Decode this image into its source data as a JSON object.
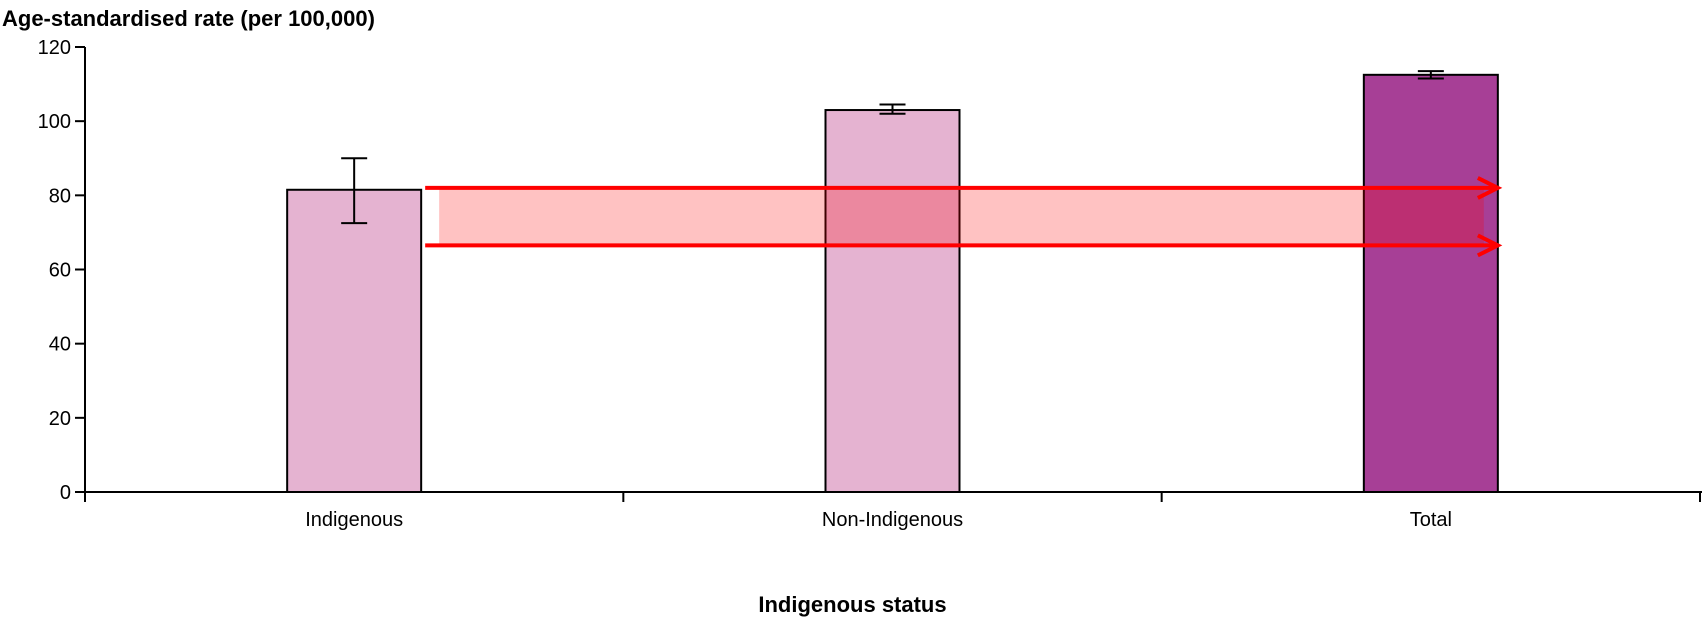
{
  "chart_data": {
    "type": "bar",
    "ylabel": "Age-standardised rate (per 100,000)",
    "xlabel": "Indigenous status",
    "categories": [
      "Indigenous",
      "Non-Indigenous",
      "Total"
    ],
    "values": [
      81.5,
      103,
      112.5
    ],
    "error_low": [
      72.5,
      102,
      111.5
    ],
    "error_high": [
      90,
      104.5,
      113.5
    ],
    "bar_colors": [
      "#e5b3d1",
      "#e5b3d1",
      "#a73f96"
    ],
    "ylim": [
      0,
      120
    ],
    "yticks": [
      0,
      20,
      40,
      60,
      80,
      100,
      120
    ],
    "grid": false,
    "annotation": {
      "band_low": 66.5,
      "band_high": 82,
      "band_color": "#ff0000",
      "from_category": "Indigenous",
      "to_category": "Total"
    }
  }
}
